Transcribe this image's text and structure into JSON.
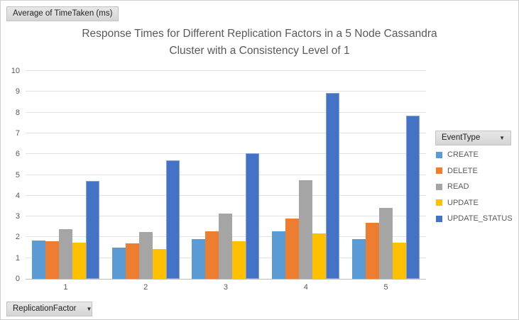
{
  "pivot_buttons": {
    "value_field": "Average of TimeTaken (ms)",
    "legend_field": "EventType",
    "axis_field": "ReplicationFactor",
    "dropdown_arrow": "▼"
  },
  "chart_data": {
    "type": "bar",
    "title": "Response Times for Different Replication Factors in a 5 Node Cassandra Cluster with a Consistency Level of 1",
    "title_lines": [
      "Response Times for Different Replication Factors in a 5 Node Cassandra",
      "Cluster with a Consistency Level of 1"
    ],
    "categories": [
      "1",
      "2",
      "3",
      "4",
      "5"
    ],
    "series": [
      {
        "name": "CREATE",
        "color": "#5B9BD5",
        "values": [
          1.85,
          1.5,
          1.9,
          2.3,
          1.9
        ]
      },
      {
        "name": "DELETE",
        "color": "#ED7D31",
        "values": [
          1.8,
          1.7,
          2.3,
          2.9,
          2.7
        ]
      },
      {
        "name": "READ",
        "color": "#A5A5A5",
        "values": [
          2.4,
          2.25,
          3.15,
          4.75,
          3.4
        ]
      },
      {
        "name": "UPDATE",
        "color": "#FFC000",
        "values": [
          1.75,
          1.45,
          1.8,
          2.2,
          1.75
        ]
      },
      {
        "name": "UPDATE_STATUS",
        "color": "#4472C4",
        "values": [
          4.7,
          5.7,
          6.05,
          8.95,
          7.85
        ]
      }
    ],
    "ylim": [
      0,
      10
    ],
    "y_ticks": [
      0,
      1,
      2,
      3,
      4,
      5,
      6,
      7,
      8,
      9,
      10
    ],
    "legend_title": "EventType",
    "legend_position": "right",
    "grid": true
  },
  "ui_colors": {
    "title_text": "#595959",
    "axis_text": "#595959",
    "gridline": "#E2E2E2",
    "chip_background": "#DBDBDB"
  }
}
